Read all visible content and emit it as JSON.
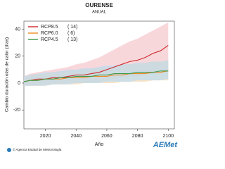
{
  "chart_data": {
    "type": "line",
    "title": "OURENSE",
    "subtitle": "ANUAL",
    "x_label": "Año",
    "y_label": "Cambio duración olas de calor (días)",
    "x": [
      2006,
      2010,
      2015,
      2020,
      2025,
      2030,
      2035,
      2040,
      2045,
      2050,
      2055,
      2060,
      2065,
      2070,
      2075,
      2080,
      2085,
      2090,
      2095,
      2100
    ],
    "xlim": [
      2006,
      2104
    ],
    "xticks": [
      2020,
      2040,
      2060,
      2080,
      2100
    ],
    "ylim": [
      -34,
      46
    ],
    "yticks": [
      -20,
      0,
      20,
      40
    ],
    "series": [
      {
        "name": "RCP8.5",
        "count_label": "( 14)",
        "color": "#cc2a2a",
        "band_color": "#f5c6cc",
        "values": [
          1,
          2,
          3,
          3,
          4,
          4,
          5,
          6,
          6,
          7,
          8,
          10,
          12,
          14,
          16,
          17,
          19,
          22,
          24,
          28
        ],
        "upper": [
          5,
          7,
          8,
          9,
          10,
          11,
          12,
          14,
          15,
          17,
          19,
          22,
          25,
          28,
          31,
          33,
          36,
          39,
          42,
          45
        ],
        "lower": [
          -2,
          -2,
          -2,
          -1,
          -1,
          -1,
          0,
          0,
          0,
          1,
          1,
          2,
          3,
          4,
          5,
          5,
          6,
          7,
          8,
          9
        ]
      },
      {
        "name": "RCP6.0",
        "count_label": "(  6)",
        "color": "#f08a24",
        "band_color": "#fbd9b0",
        "values": [
          1,
          2,
          2,
          3,
          3,
          3,
          4,
          4,
          4,
          5,
          5,
          5,
          6,
          6,
          7,
          7,
          7,
          8,
          8,
          9
        ],
        "upper": [
          5,
          6,
          7,
          7,
          8,
          8,
          9,
          9,
          10,
          10,
          11,
          11,
          12,
          13,
          14,
          14,
          15,
          16,
          16,
          17
        ],
        "lower": [
          -2,
          -2,
          -2,
          -2,
          -1,
          -1,
          -1,
          -1,
          0,
          0,
          0,
          0,
          0,
          1,
          1,
          1,
          1,
          2,
          2,
          2
        ]
      },
      {
        "name": "RCP4.5",
        "count_label": "( 13)",
        "color": "#3a9a4a",
        "band_color": "#b9dcef",
        "values": [
          1,
          2,
          2,
          3,
          3,
          4,
          4,
          5,
          5,
          5,
          6,
          6,
          7,
          7,
          7,
          8,
          8,
          8,
          9,
          9
        ],
        "upper": [
          5,
          6,
          7,
          8,
          8,
          9,
          10,
          10,
          11,
          11,
          12,
          13,
          13,
          14,
          14,
          15,
          15,
          16,
          16,
          17
        ],
        "lower": [
          -2,
          -2,
          -2,
          -2,
          -1,
          -1,
          -1,
          0,
          0,
          0,
          0,
          1,
          1,
          1,
          1,
          2,
          2,
          2,
          2,
          3
        ]
      }
    ],
    "source": "© Agencia Estatal de Meteorología",
    "logo": "AEMet"
  }
}
